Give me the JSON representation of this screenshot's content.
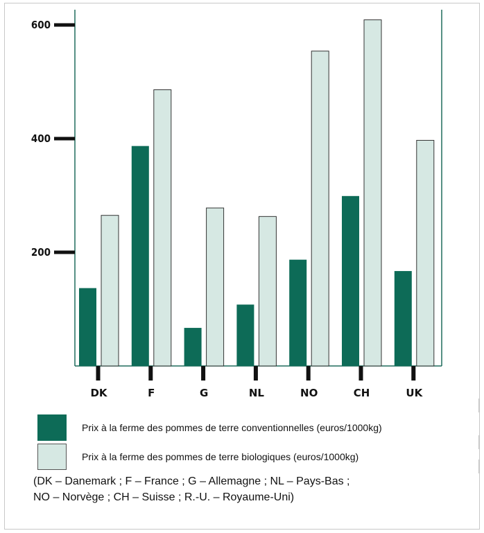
{
  "chart_data": {
    "type": "bar",
    "categories": [
      "DK",
      "F",
      "G",
      "NL",
      "NO",
      "CH",
      "UK"
    ],
    "series": [
      {
        "name": "Prix à la ferme des pommes de terre conventionnelles (euros/1000kg)",
        "values": [
          137,
          387,
          67,
          108,
          187,
          299,
          167
        ],
        "color": "#0d6b57"
      },
      {
        "name": "Prix à la ferme des pommes de terre biologiques (euros/1000kg)",
        "values": [
          265,
          486,
          278,
          263,
          554,
          609,
          397
        ],
        "color": "#d6e8e3"
      }
    ],
    "y_ticks": [
      "200",
      "400",
      "600"
    ],
    "ylim": [
      0,
      640
    ],
    "grid": false,
    "legend_position": "bottom"
  },
  "legend": {
    "conventional_label": "Prix à la ferme des pommes de terre conventionnelles (euros/1000kg)",
    "organic_label": "Prix à la ferme des pommes de terre biologiques (euros/1000kg)"
  },
  "note": {
    "line1": "(DK – Danemark ; F – France ; G – Allemagne ; NL – Pays-Bas ;",
    "line2": "NO – Norvège ; CH – Suisse ; R.-U. – Royaume-Uni)"
  },
  "colors": {
    "conventional": "#0d6b57",
    "organic": "#d6e8e3",
    "axis": "#1f6b5c"
  }
}
